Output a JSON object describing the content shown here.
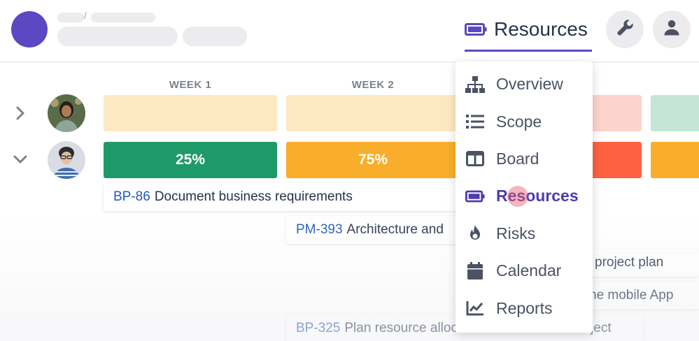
{
  "header": {
    "breadcrumb_separator": "/",
    "current_section": "Resources"
  },
  "weeks": [
    "WEEK 1",
    "WEEK 2"
  ],
  "rows": [
    {
      "expanded": false
    },
    {
      "expanded": true,
      "cells": [
        "25%",
        "75%"
      ]
    }
  ],
  "colors": {
    "accent": "#5b48c2",
    "green": "#1e9a68",
    "amber": "#f8ae2a",
    "orange_red": "#fd6140",
    "light_peach": "#fde9c1",
    "light_pink": "#fcd4cd",
    "light_mint": "#c5e6d6"
  },
  "tasks": [
    {
      "key": "BP-86",
      "title": "Document business requirements"
    },
    {
      "key": "PM-393",
      "title": "Architecture and"
    },
    {
      "key": "",
      "title": "project plan"
    },
    {
      "key": "",
      "title": "ne mobile App"
    },
    {
      "key": "BP-325",
      "title": "Plan resource allocation for the whole Project"
    }
  ],
  "menu": {
    "items": [
      {
        "label": "Overview",
        "icon": "sitemap-icon"
      },
      {
        "label": "Scope",
        "icon": "list-icon"
      },
      {
        "label": "Board",
        "icon": "board-icon"
      },
      {
        "label": "Resources",
        "icon": "battery-icon",
        "active": true
      },
      {
        "label": "Risks",
        "icon": "fire-icon"
      },
      {
        "label": "Calendar",
        "icon": "calendar-icon"
      },
      {
        "label": "Reports",
        "icon": "chart-icon"
      }
    ]
  }
}
